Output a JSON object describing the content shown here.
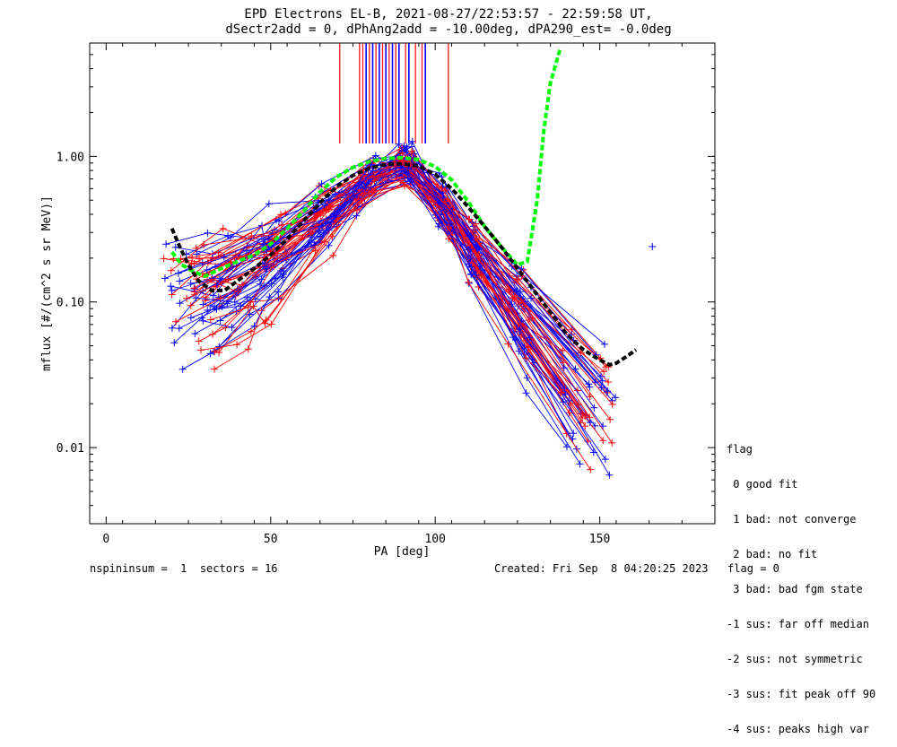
{
  "title_line1": "EPD Electrons EL-B, 2021-08-27/22:53:57 - 22:59:58 UT,",
  "title_line2": "dSectr2add = 0, dPhAng2add = -10.00deg, dPA290_est=  -0.0deg",
  "footer_left": "nspininsum =  1  sectors = 16",
  "footer_right": "Created: Fri Sep  8 04:20:25 2023   flag = 0",
  "legend": {
    "title": "flag",
    "items": [
      " 0 good fit",
      " 1 bad: not converge",
      " 2 bad: no fit",
      " 3 bad: bad fgm state",
      "-1 sus: far off median",
      "-2 sus: not symmetric",
      "-3 sus: fit peak off 90",
      "-4 sus: peaks high var"
    ]
  },
  "colors": {
    "red": "#ff0000",
    "blue": "#0000ff",
    "green": "#00ff00",
    "black": "#000000"
  },
  "chart_data": {
    "type": "line",
    "title": "EPD Electrons EL-B, 2021-08-27/22:53:57 - 22:59:58 UT,",
    "subtitle": "dSectr2add = 0, dPhAng2add = -10.00deg, dPA290_est=  -0.0deg",
    "xlabel": "PA [deg]",
    "ylabel": "mflux [#/(cm^2 s sr MeV)]",
    "xlim": [
      -5,
      185
    ],
    "ylim": [
      0.003,
      6.0
    ],
    "yscale": "log",
    "x_ticks": [
      0,
      50,
      100,
      150
    ],
    "x_tick_labels": [
      "0",
      "50",
      "100",
      "150"
    ],
    "y_ticks": [
      0.01,
      0.1,
      1.0
    ],
    "y_tick_labels": [
      "0.01",
      "0.10",
      "1.00"
    ],
    "series": [
      {
        "color": "#00ff00",
        "style": "dashed-thick",
        "x": [
          20,
          23,
          27,
          30,
          35,
          40,
          45,
          50,
          55,
          60,
          65,
          70,
          75,
          80,
          85,
          90,
          95,
          100,
          105,
          110,
          115,
          120,
          125,
          128,
          131,
          133,
          135,
          138
        ],
        "y": [
          0.22,
          0.18,
          0.16,
          0.15,
          0.17,
          0.19,
          0.21,
          0.25,
          0.32,
          0.42,
          0.57,
          0.72,
          0.84,
          0.92,
          0.97,
          0.98,
          0.95,
          0.85,
          0.69,
          0.49,
          0.33,
          0.24,
          0.18,
          0.19,
          0.5,
          1.5,
          3.2,
          5.5
        ]
      },
      {
        "color": "#000000",
        "style": "dashed-thick",
        "x": [
          20,
          22,
          25,
          28,
          32,
          36,
          40,
          45,
          50,
          55,
          60,
          65,
          70,
          75,
          80,
          85,
          90,
          95,
          100,
          105,
          110,
          115,
          120,
          125,
          130,
          135,
          140,
          145,
          150,
          153,
          155,
          158,
          161
        ],
        "y": [
          0.32,
          0.25,
          0.18,
          0.14,
          0.12,
          0.12,
          0.14,
          0.17,
          0.21,
          0.27,
          0.36,
          0.48,
          0.62,
          0.74,
          0.83,
          0.88,
          0.89,
          0.86,
          0.75,
          0.6,
          0.45,
          0.33,
          0.24,
          0.17,
          0.12,
          0.085,
          0.06,
          0.047,
          0.04,
          0.037,
          0.038,
          0.042,
          0.047
        ]
      }
    ],
    "sector_bars": {
      "red_x": [
        71,
        77,
        78,
        80,
        82,
        84,
        86,
        88,
        91,
        94,
        96,
        104
      ],
      "blue_x": [
        79,
        81,
        83,
        85,
        87,
        89,
        92,
        97
      ]
    },
    "pitch_angle_sweeps": "approximately 30 red and 30 blue overlaid PA-distribution traces peaking near 0.9 at PA 85-95 deg, falling to 0.01-0.5 at PA 15-40 deg and 0.005-0.18 at PA 135-165 deg"
  }
}
